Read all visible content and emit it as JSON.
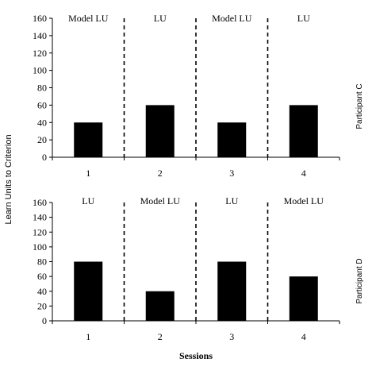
{
  "chart_data": [
    {
      "type": "bar",
      "participant": "Participant C",
      "categories": [
        "1",
        "2",
        "3",
        "4"
      ],
      "phases": [
        "Model LU",
        "LU",
        "Model LU",
        "LU"
      ],
      "values": [
        40,
        60,
        40,
        60
      ],
      "ylim": [
        0,
        160
      ],
      "yticks": [
        0,
        20,
        40,
        60,
        80,
        100,
        120,
        140,
        160
      ]
    },
    {
      "type": "bar",
      "participant": "Participant D",
      "categories": [
        "1",
        "2",
        "3",
        "4"
      ],
      "phases": [
        "LU",
        "Model LU",
        "LU",
        "Model LU"
      ],
      "values": [
        80,
        40,
        80,
        60
      ],
      "ylim": [
        0,
        160
      ],
      "yticks": [
        0,
        20,
        40,
        60,
        80,
        100,
        120,
        140,
        160
      ]
    }
  ],
  "ylabel": "Learn Units to Criterion",
  "xlabel": "Sessions",
  "colors": {
    "bar": "#000000",
    "axis": "#000000"
  }
}
